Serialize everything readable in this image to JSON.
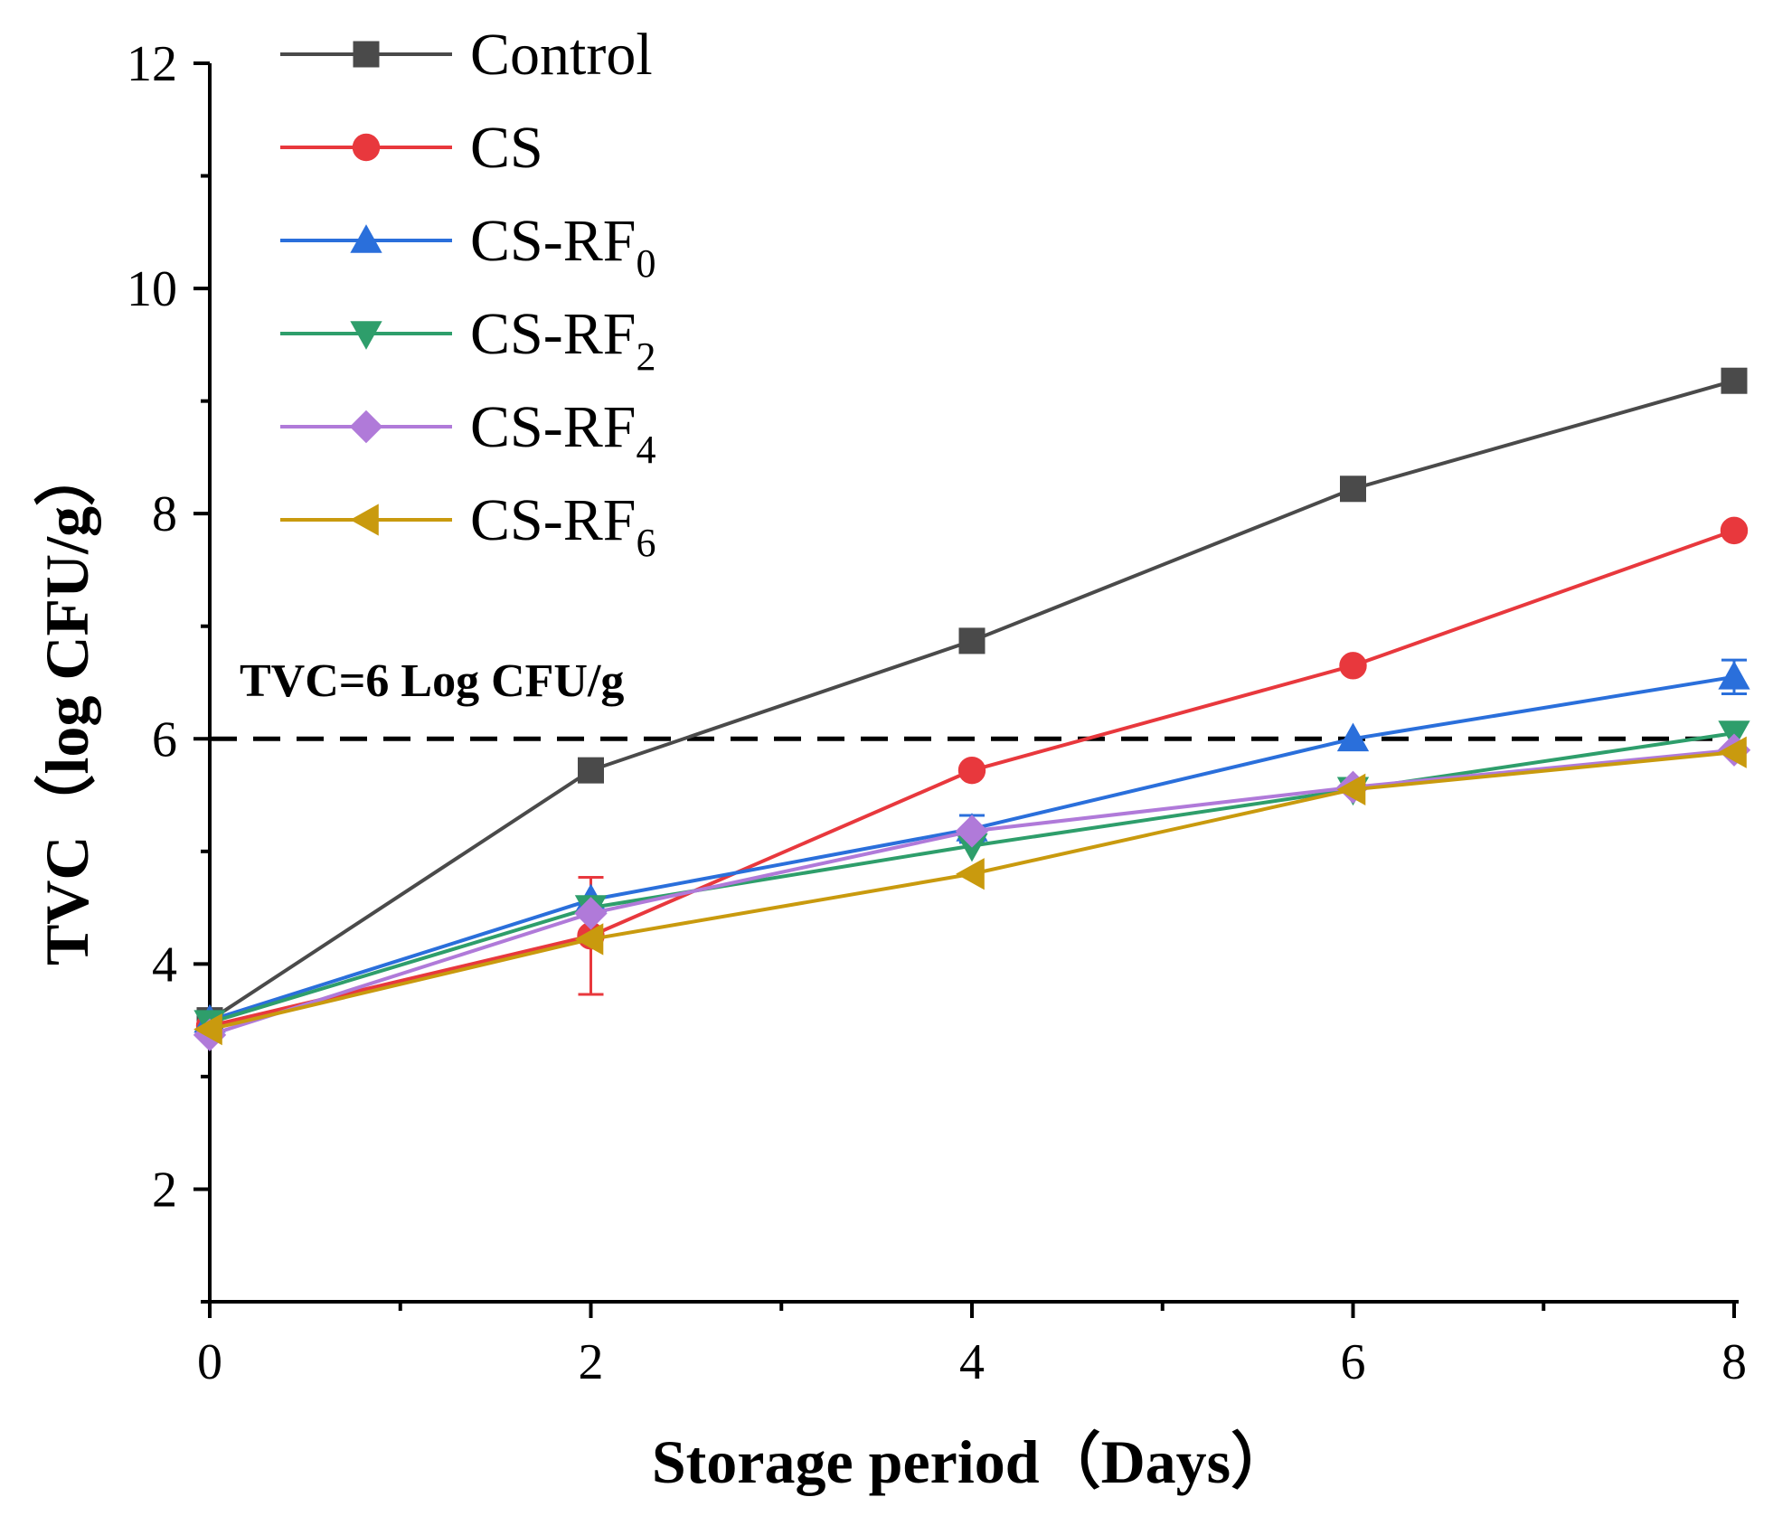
{
  "chart_data": {
    "type": "line",
    "title": "",
    "xlabel": "Storage period（Days）",
    "ylabel": "TVC（log CFU/g）",
    "x": [
      0,
      2,
      4,
      6,
      8
    ],
    "xlim": [
      0,
      8
    ],
    "ylim": [
      1,
      12
    ],
    "xticks": [
      0,
      2,
      4,
      6,
      8
    ],
    "yticks": [
      2,
      4,
      6,
      8,
      10,
      12
    ],
    "grid": false,
    "legend_position": "top-left",
    "series": [
      {
        "name": "Control",
        "label_main": "Control",
        "label_sub": "",
        "color": "#4a4a4a",
        "marker": "square",
        "values": [
          3.5,
          5.72,
          6.87,
          8.22,
          9.18
        ],
        "errors": [
          0.05,
          0.05,
          0.05,
          0.05,
          0.05
        ]
      },
      {
        "name": "CS",
        "label_main": "CS",
        "label_sub": "",
        "color": "#e8383d",
        "marker": "circle",
        "values": [
          3.45,
          4.25,
          5.72,
          6.65,
          7.85
        ],
        "errors": [
          0.05,
          0.52,
          0.05,
          0.05,
          0.05
        ]
      },
      {
        "name": "CS-RF0",
        "label_main": "CS-RF",
        "label_sub": "0",
        "color": "#2a6fdb",
        "marker": "triangle-up",
        "values": [
          3.5,
          4.57,
          5.2,
          6.0,
          6.55
        ],
        "errors": [
          0.05,
          0.05,
          0.12,
          0.05,
          0.15
        ]
      },
      {
        "name": "CS-RF2",
        "label_main": "CS-RF",
        "label_sub": "2",
        "color": "#2e9e6b",
        "marker": "triangle-down",
        "values": [
          3.48,
          4.5,
          5.05,
          5.55,
          6.05
        ],
        "errors": [
          0.05,
          0.05,
          0.05,
          0.05,
          0.05
        ]
      },
      {
        "name": "CS-RF4",
        "label_main": "CS-RF",
        "label_sub": "4",
        "color": "#b07ad9",
        "marker": "diamond",
        "values": [
          3.37,
          4.45,
          5.18,
          5.57,
          5.9
        ],
        "errors": [
          0.05,
          0.05,
          0.05,
          0.05,
          0.05
        ]
      },
      {
        "name": "CS-RF6",
        "label_main": "CS-RF",
        "label_sub": "6",
        "color": "#c99a0e",
        "marker": "triangle-left",
        "values": [
          3.42,
          4.22,
          4.8,
          5.55,
          5.88
        ],
        "errors": [
          0.05,
          0.05,
          0.05,
          0.05,
          0.05
        ]
      }
    ],
    "reference_line": {
      "y": 6,
      "label": "TVC=6 Log CFU/g"
    }
  }
}
